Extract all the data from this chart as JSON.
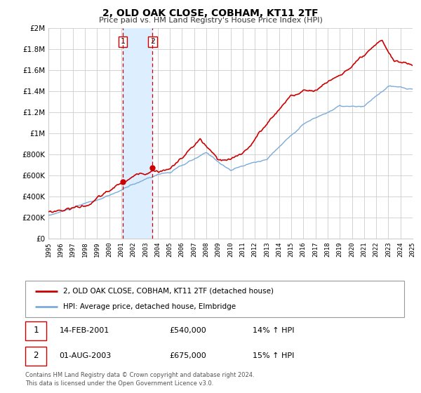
{
  "title": "2, OLD OAK CLOSE, COBHAM, KT11 2TF",
  "subtitle": "Price paid vs. HM Land Registry's House Price Index (HPI)",
  "legend_line1": "2, OLD OAK CLOSE, COBHAM, KT11 2TF (detached house)",
  "legend_line2": "HPI: Average price, detached house, Elmbridge",
  "footer1": "Contains HM Land Registry data © Crown copyright and database right 2024.",
  "footer2": "This data is licensed under the Open Government Licence v3.0.",
  "annotation1_label": "1",
  "annotation1_date": "14-FEB-2001",
  "annotation1_price": "£540,000",
  "annotation1_hpi": "14% ↑ HPI",
  "annotation2_label": "2",
  "annotation2_date": "01-AUG-2003",
  "annotation2_price": "£675,000",
  "annotation2_hpi": "15% ↑ HPI",
  "sale1_x": 2001.12,
  "sale1_y": 540000,
  "sale2_x": 2003.58,
  "sale2_y": 675000,
  "vline1_x": 2001.12,
  "vline2_x": 2003.58,
  "shade_xmin": 2001.12,
  "shade_xmax": 2003.58,
  "red_color": "#cc0000",
  "blue_color": "#7aabdb",
  "shade_color": "#ddeeff",
  "grid_color": "#cccccc",
  "bg_color": "#ffffff",
  "ylim_min": 0,
  "ylim_max": 2000000,
  "xlim_min": 1995,
  "xlim_max": 2025,
  "yticks": [
    0,
    200000,
    400000,
    600000,
    800000,
    1000000,
    1200000,
    1400000,
    1600000,
    1800000,
    2000000
  ],
  "ytick_labels": [
    "£0",
    "£200K",
    "£400K",
    "£600K",
    "£800K",
    "£1M",
    "£1.2M",
    "£1.4M",
    "£1.6M",
    "£1.8M",
    "£2M"
  ],
  "xticks": [
    1995,
    1996,
    1997,
    1998,
    1999,
    2000,
    2001,
    2002,
    2003,
    2004,
    2005,
    2006,
    2007,
    2008,
    2009,
    2010,
    2011,
    2012,
    2013,
    2014,
    2015,
    2016,
    2017,
    2018,
    2019,
    2020,
    2021,
    2022,
    2023,
    2024,
    2025
  ]
}
